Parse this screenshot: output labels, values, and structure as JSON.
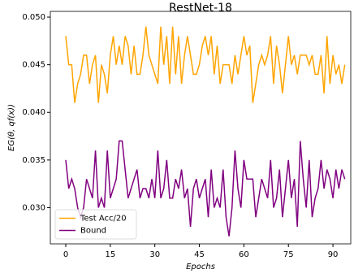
{
  "chart_data": {
    "type": "line",
    "title": "RestNet-18",
    "xlabel": "Epochs",
    "ylabel": "EG(θ, qf(x))",
    "x": [
      0,
      1,
      2,
      3,
      4,
      5,
      6,
      7,
      8,
      9,
      10,
      11,
      12,
      13,
      14,
      15,
      16,
      17,
      18,
      19,
      20,
      21,
      22,
      23,
      24,
      25,
      26,
      27,
      28,
      29,
      30,
      31,
      32,
      33,
      34,
      35,
      36,
      37,
      38,
      39,
      40,
      41,
      42,
      43,
      44,
      45,
      46,
      47,
      48,
      49,
      50,
      51,
      52,
      53,
      54,
      55,
      56,
      57,
      58,
      59,
      60,
      61,
      62,
      63,
      64,
      65,
      66,
      67,
      68,
      69,
      70,
      71,
      72,
      73,
      74,
      75,
      76,
      77,
      78,
      79,
      80,
      81,
      82,
      83,
      84,
      85,
      86,
      87,
      88,
      89,
      90,
      91,
      92,
      93,
      94
    ],
    "series": [
      {
        "name": "Test Acc/20",
        "color": "#ffa500",
        "values": [
          0.048,
          0.045,
          0.045,
          0.041,
          0.043,
          0.044,
          0.046,
          0.046,
          0.043,
          0.045,
          0.046,
          0.041,
          0.045,
          0.044,
          0.042,
          0.046,
          0.048,
          0.045,
          0.047,
          0.045,
          0.048,
          0.047,
          0.044,
          0.047,
          0.044,
          0.044,
          0.046,
          0.049,
          0.046,
          0.045,
          0.044,
          0.043,
          0.049,
          0.045,
          0.048,
          0.043,
          0.049,
          0.044,
          0.048,
          0.043,
          0.046,
          0.048,
          0.046,
          0.044,
          0.044,
          0.045,
          0.047,
          0.048,
          0.046,
          0.048,
          0.044,
          0.047,
          0.043,
          0.045,
          0.045,
          0.045,
          0.043,
          0.046,
          0.044,
          0.046,
          0.048,
          0.046,
          0.047,
          0.041,
          0.043,
          0.045,
          0.046,
          0.045,
          0.046,
          0.048,
          0.043,
          0.047,
          0.045,
          0.042,
          0.045,
          0.048,
          0.045,
          0.046,
          0.044,
          0.046,
          0.046,
          0.046,
          0.045,
          0.046,
          0.044,
          0.044,
          0.046,
          0.042,
          0.048,
          0.043,
          0.046,
          0.044,
          0.045,
          0.043,
          0.045
        ]
      },
      {
        "name": "Bound",
        "color": "#800080",
        "values": [
          0.035,
          0.032,
          0.033,
          0.032,
          0.03,
          0.029,
          0.03,
          0.033,
          0.032,
          0.031,
          0.036,
          0.03,
          0.031,
          0.03,
          0.036,
          0.031,
          0.032,
          0.033,
          0.037,
          0.037,
          0.034,
          0.031,
          0.032,
          0.033,
          0.034,
          0.031,
          0.032,
          0.032,
          0.031,
          0.033,
          0.031,
          0.036,
          0.031,
          0.032,
          0.035,
          0.031,
          0.031,
          0.033,
          0.032,
          0.034,
          0.031,
          0.032,
          0.028,
          0.032,
          0.033,
          0.031,
          0.032,
          0.033,
          0.029,
          0.034,
          0.03,
          0.031,
          0.03,
          0.034,
          0.029,
          0.027,
          0.03,
          0.036,
          0.032,
          0.03,
          0.035,
          0.033,
          0.033,
          0.033,
          0.029,
          0.031,
          0.033,
          0.032,
          0.031,
          0.035,
          0.03,
          0.031,
          0.034,
          0.029,
          0.032,
          0.035,
          0.031,
          0.033,
          0.028,
          0.037,
          0.033,
          0.03,
          0.035,
          0.029,
          0.031,
          0.032,
          0.035,
          0.032,
          0.034,
          0.033,
          0.031,
          0.034,
          0.032,
          0.034,
          0.033
        ]
      }
    ],
    "xlim": [
      -5.2,
      96
    ],
    "ylim": [
      0.0262,
      0.0506
    ],
    "xticks": [
      0,
      15,
      30,
      45,
      60,
      75,
      90
    ],
    "yticks": [
      {
        "value": 0.03,
        "label": "0.030"
      },
      {
        "value": 0.035,
        "label": "0.035"
      },
      {
        "value": 0.04,
        "label": "0.040"
      },
      {
        "value": 0.045,
        "label": "0.045"
      },
      {
        "value": 0.05,
        "label": "0.050"
      }
    ],
    "legend": "lower left"
  }
}
